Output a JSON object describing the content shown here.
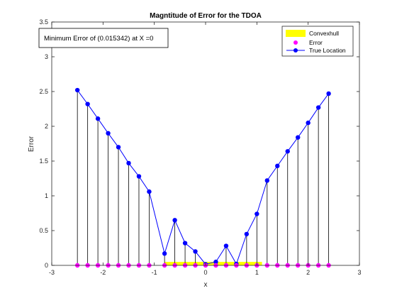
{
  "chart_data": {
    "type": "line",
    "title": "Magntitude of Error for the TDOA",
    "xlabel": "x",
    "ylabel": "Error",
    "xlim": [
      -3,
      3
    ],
    "ylim": [
      0,
      3.5
    ],
    "xticks": [
      -3,
      -2,
      -1,
      0,
      1,
      2,
      3
    ],
    "yticks": [
      0,
      0.5,
      1,
      1.5,
      2,
      2.5,
      3,
      3.5
    ],
    "xtick_labels": [
      "-3",
      "-2",
      "-1",
      "0",
      "1",
      "2",
      "3"
    ],
    "ytick_labels": [
      "0",
      "0.5",
      "1",
      "1.5",
      "2",
      "2.5",
      "3",
      "3.5"
    ],
    "annotation": "Minimum Error of (0.015342) at X =0",
    "legend_position": "top-right",
    "legend": [
      {
        "label": "Convexhull",
        "color": "#ffff00",
        "kind": "patch"
      },
      {
        "label": "Error",
        "color": "#ff00ff",
        "kind": "marker"
      },
      {
        "label": "True Location",
        "color": "#0000ff",
        "kind": "line-marker"
      }
    ],
    "convexhull": {
      "x_range": [
        -0.8,
        1.1
      ],
      "height": 0.05,
      "color": "#ffff00"
    },
    "series": [
      {
        "name": "Error",
        "color": "#0000ff",
        "x": [
          -2.5,
          -2.3,
          -2.1,
          -1.9,
          -1.7,
          -1.5,
          -1.3,
          -1.1,
          -0.8,
          -0.6,
          -0.4,
          -0.2,
          0,
          0.2,
          0.4,
          0.6,
          0.8,
          1.0,
          1.2,
          1.4,
          1.6,
          1.8,
          2.0,
          2.2,
          2.4
        ],
        "y": [
          2.52,
          2.32,
          2.11,
          1.9,
          1.7,
          1.47,
          1.28,
          1.06,
          0.17,
          0.65,
          0.32,
          0.2,
          0.015342,
          0.05,
          0.28,
          0.02,
          0.45,
          0.74,
          1.22,
          1.43,
          1.64,
          1.84,
          2.05,
          2.27,
          2.47
        ]
      }
    ],
    "true_location": {
      "color": "#ff00ff",
      "x": [
        -2.5,
        -2.3,
        -2.1,
        -1.9,
        -1.7,
        -1.5,
        -1.3,
        -1.1,
        -0.8,
        -0.6,
        -0.4,
        -0.2,
        0,
        0.2,
        0.4,
        0.6,
        0.8,
        1.0,
        1.2,
        1.4,
        1.6,
        1.8,
        2.0,
        2.2,
        2.4
      ],
      "y": 0
    }
  }
}
